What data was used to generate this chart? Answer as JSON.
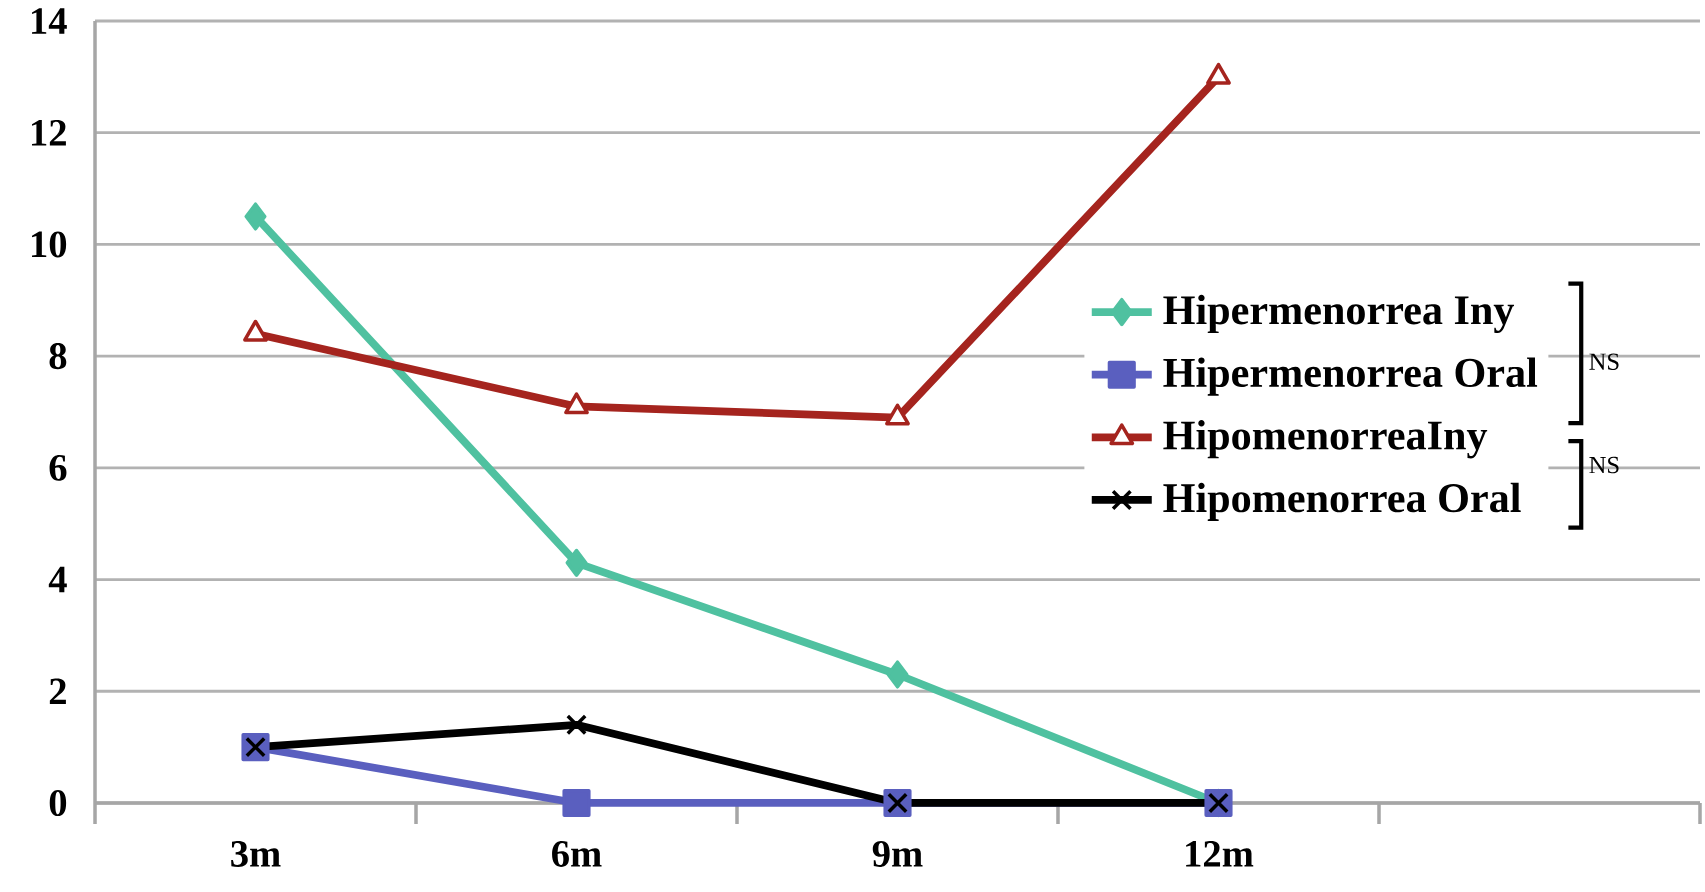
{
  "chart_data": {
    "type": "line",
    "categories": [
      "3m",
      "6m",
      "9m",
      "12m",
      null
    ],
    "series": [
      {
        "name": "Hipermenorrea Iny",
        "color": "#4fc1a0",
        "marker": "diamond",
        "values": [
          10.5,
          4.3,
          2.3,
          0,
          null
        ]
      },
      {
        "name": "Hipermenorrea Oral",
        "color": "#5a5fbf",
        "marker": "square",
        "values": [
          1,
          0,
          0,
          0,
          null
        ]
      },
      {
        "name": "HipomenorreaIny",
        "color": "#a5241e",
        "marker": "triangle",
        "values": [
          8.4,
          7.1,
          6.9,
          13,
          null
        ]
      },
      {
        "name": "Hipomenorrea Oral",
        "color": "#000000",
        "marker": "cross",
        "values": [
          1,
          1.4,
          0,
          0,
          null
        ]
      }
    ],
    "ylim": [
      0,
      14
    ],
    "yticks": [
      0,
      2,
      4,
      6,
      8,
      10,
      12,
      14
    ],
    "grid": "y",
    "legend": "right",
    "annotations": [
      "NS",
      "NS"
    ]
  }
}
